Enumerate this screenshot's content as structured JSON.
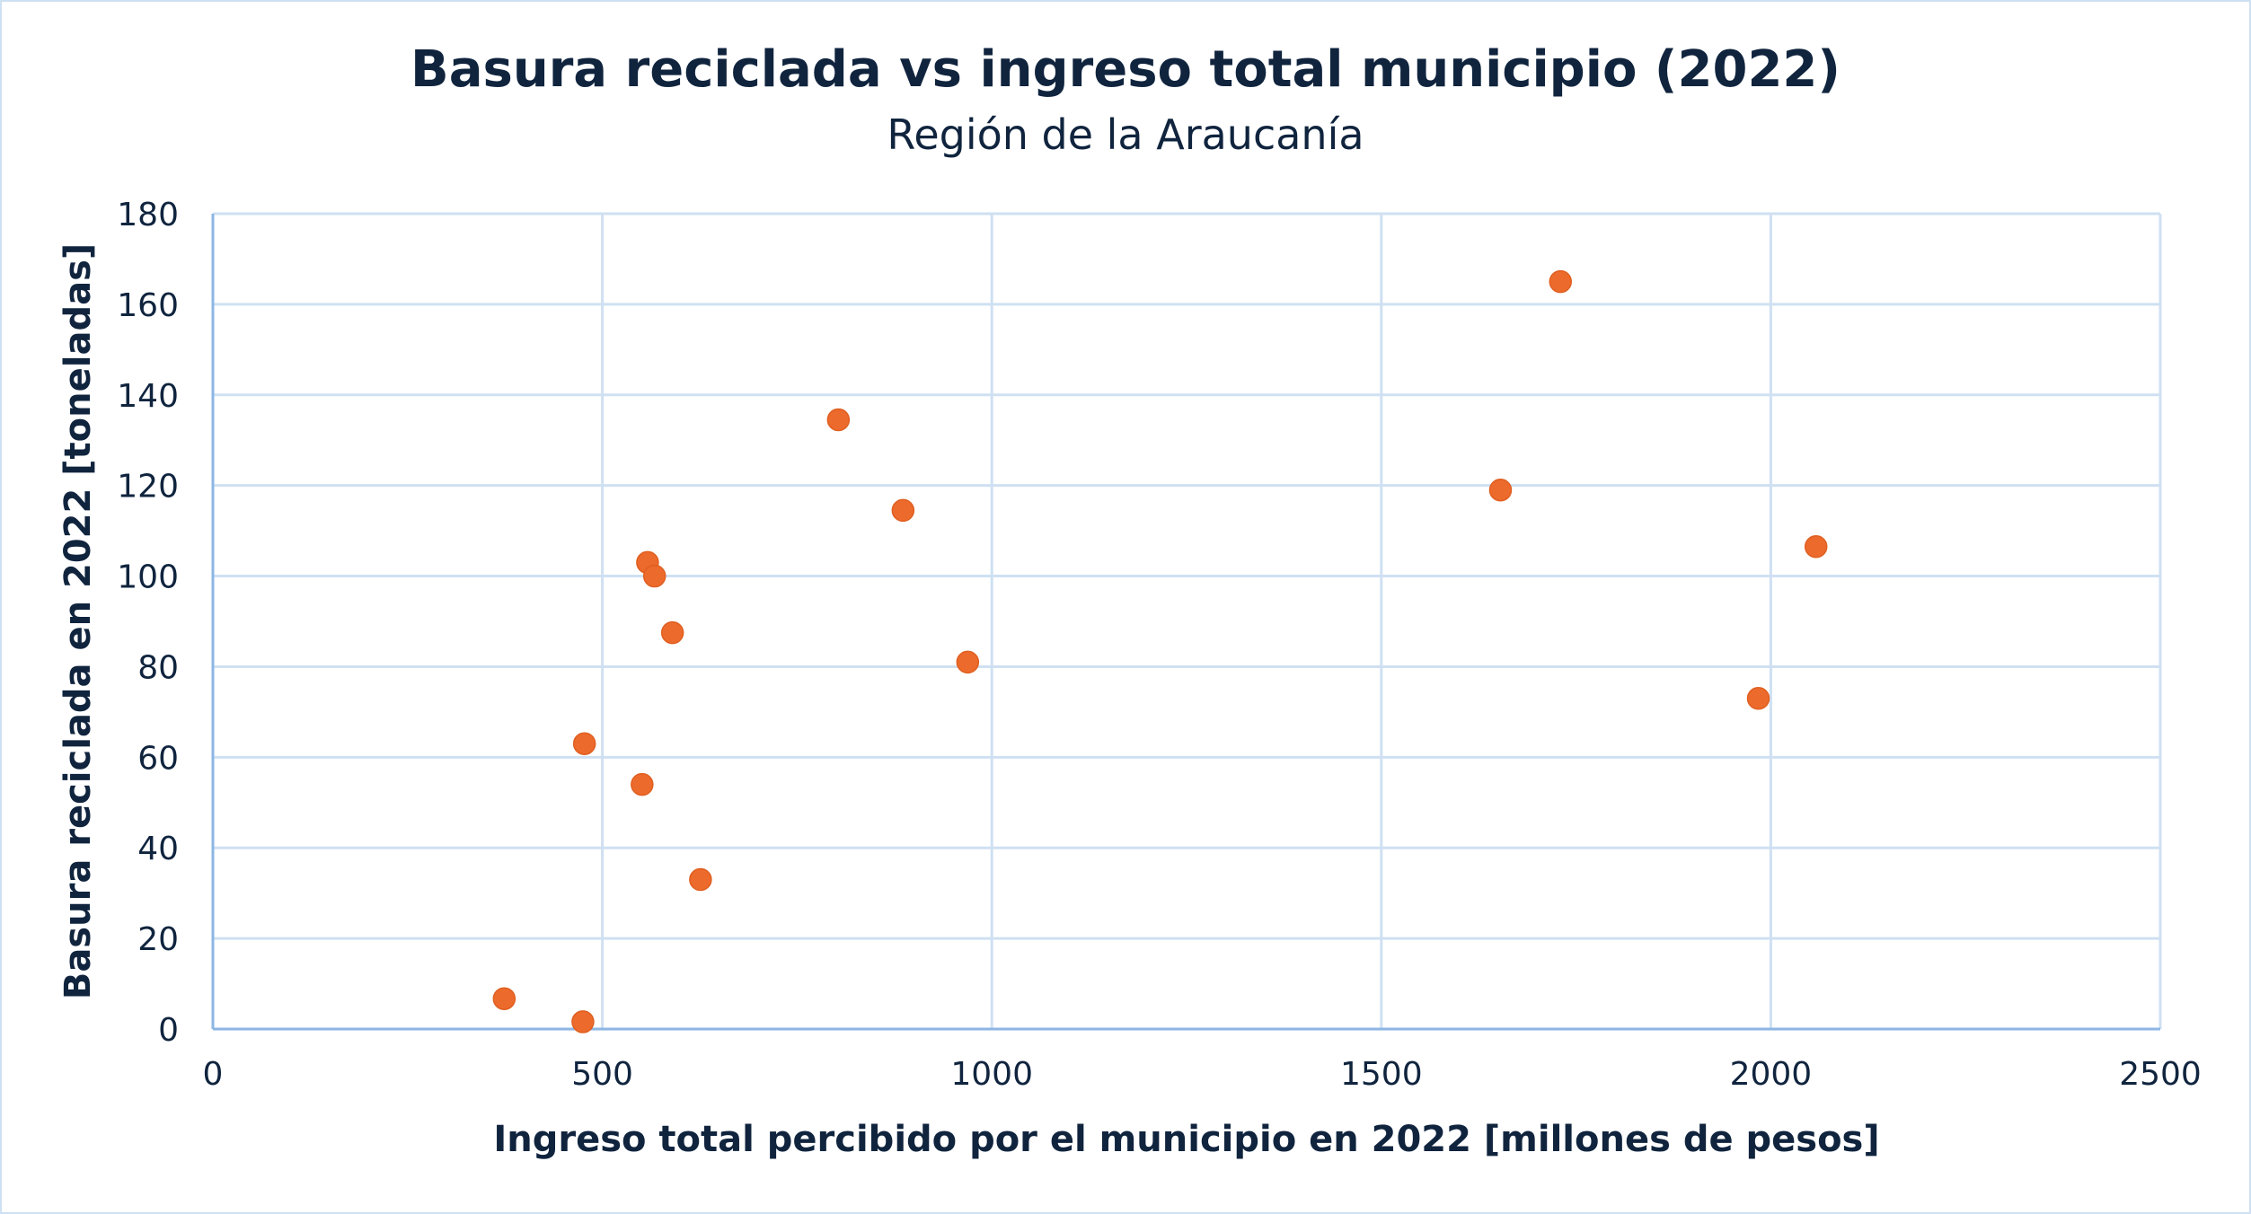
{
  "chart_data": {
    "type": "scatter",
    "title": "Basura reciclada vs ingreso total municipio (2022)",
    "subtitle": "Región de la Araucanía",
    "xlabel": "Ingreso total percibido por el municipio en 2022 [millones de pesos]",
    "ylabel": "Basura reciclada en 2022 [toneladas]",
    "xlim": [
      0,
      2500
    ],
    "ylim": [
      0,
      180
    ],
    "xticks": [
      0,
      500,
      1000,
      1500,
      2000,
      2500
    ],
    "yticks": [
      0,
      20,
      40,
      60,
      80,
      100,
      120,
      140,
      160,
      180
    ],
    "grid": true,
    "legend": "none",
    "colors": {
      "marker": "#ec6a2c",
      "grid": "#cfe0f2",
      "axis": "#8db6e3",
      "text": "#10243e"
    },
    "points": [
      {
        "x": 374,
        "y": 6.7
      },
      {
        "x": 475,
        "y": 1.6
      },
      {
        "x": 477,
        "y": 63
      },
      {
        "x": 551,
        "y": 54
      },
      {
        "x": 558,
        "y": 103
      },
      {
        "x": 567,
        "y": 100
      },
      {
        "x": 590,
        "y": 87.5
      },
      {
        "x": 626,
        "y": 33
      },
      {
        "x": 803,
        "y": 134.5
      },
      {
        "x": 886,
        "y": 114.5
      },
      {
        "x": 969,
        "y": 81
      },
      {
        "x": 1653,
        "y": 119
      },
      {
        "x": 1730,
        "y": 165
      },
      {
        "x": 1984,
        "y": 73
      },
      {
        "x": 2058,
        "y": 106.5
      }
    ]
  }
}
